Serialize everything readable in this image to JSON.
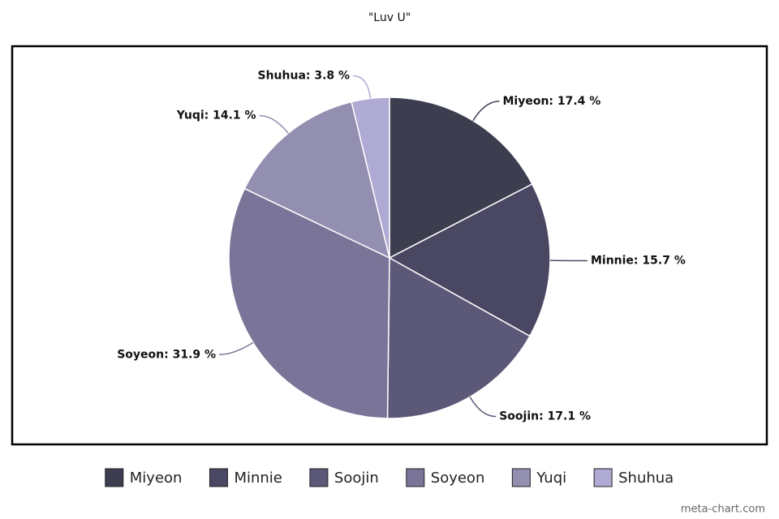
{
  "chart_data": {
    "type": "pie",
    "title": "\"Luv U\"",
    "categories": [
      "Miyeon",
      "Minnie",
      "Soojin",
      "Soyeon",
      "Yuqi",
      "Shuhua"
    ],
    "values": [
      17.4,
      15.7,
      17.1,
      31.9,
      14.1,
      3.8
    ],
    "value_labels": [
      "Miyeon: 17.4 %",
      "Minnie: 15.7 %",
      "Soojin: 17.1 %",
      "Soyeon: 31.9 %",
      "Yuqi: 14.1 %",
      "Shuhua: 3.8 %"
    ],
    "colors": [
      "#3d3d50",
      "#4a4763",
      "#5c5878",
      "#7a7598",
      "#938fb0",
      "#aeaad3"
    ],
    "legend": "bottom",
    "watermark": "meta-chart.com"
  }
}
